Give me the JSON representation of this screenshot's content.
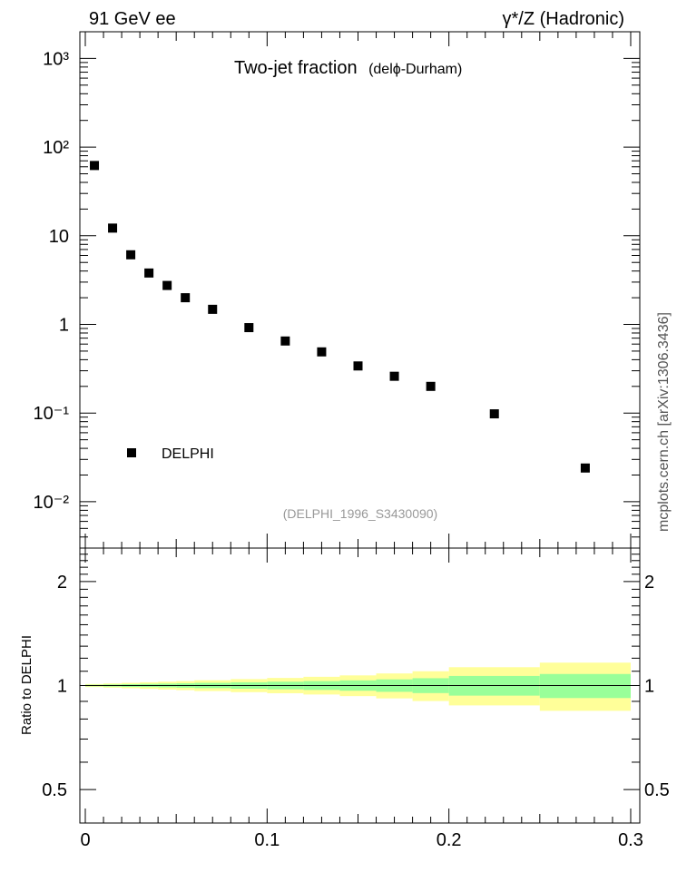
{
  "header": {
    "left": "91 GeV ee",
    "right": "γ*/Z (Hadronic)"
  },
  "main_panel": {
    "title": "Two-jet fraction",
    "title_sub": "(delϕ-Durham)",
    "analysis_id": "(DELPHI_1996_S3430090)",
    "legend_label": "DELPHI",
    "y_ticks": [
      "10³",
      "10²",
      "10",
      "1",
      "10⁻¹",
      "10⁻²"
    ]
  },
  "ratio_panel": {
    "ylabel": "Ratio to DELPHI",
    "y_ticks": [
      "2",
      "1",
      "0.5"
    ],
    "x_ticks": [
      "0",
      "0.1",
      "0.2",
      "0.3"
    ]
  },
  "side_label": "mcplots.cern.ch [arXiv:1306.3436]",
  "colors": {
    "band_inner": "#99ff99",
    "band_outer": "#ffff99",
    "marker": "#000000",
    "analysis_id": "#999999"
  },
  "chart_data": [
    {
      "type": "scatter",
      "title": "Two-jet fraction (delϕ-Durham)",
      "ylog": true,
      "xlim": [
        -0.003,
        0.305
      ],
      "ylim": [
        0.003,
        2000
      ],
      "legend": "left",
      "series": [
        {
          "name": "DELPHI",
          "x": [
            0.005,
            0.015,
            0.025,
            0.035,
            0.045,
            0.055,
            0.07,
            0.09,
            0.11,
            0.13,
            0.15,
            0.17,
            0.19,
            0.225,
            0.275
          ],
          "y": [
            62,
            12.2,
            6.1,
            3.8,
            2.75,
            2.0,
            1.48,
            0.92,
            0.65,
            0.49,
            0.34,
            0.26,
            0.2,
            0.098,
            0.024
          ]
        }
      ]
    },
    {
      "type": "area",
      "ylabel": "Ratio to DELPHI",
      "ylog": true,
      "ylim": [
        0.4,
        2.5
      ],
      "xlim": [
        -0.003,
        0.305
      ],
      "bin_edges": [
        0,
        0.01,
        0.02,
        0.03,
        0.04,
        0.05,
        0.06,
        0.08,
        0.1,
        0.12,
        0.14,
        0.16,
        0.18,
        0.2,
        0.25,
        0.3
      ],
      "inner_band": [
        [
          0.995,
          1.005
        ],
        [
          0.993,
          1.007
        ],
        [
          0.991,
          1.009
        ],
        [
          0.99,
          1.011
        ],
        [
          0.988,
          1.013
        ],
        [
          0.986,
          1.015
        ],
        [
          0.983,
          1.018
        ],
        [
          0.979,
          1.022
        ],
        [
          0.975,
          1.026
        ],
        [
          0.971,
          1.03
        ],
        [
          0.966,
          1.035
        ],
        [
          0.959,
          1.042
        ],
        [
          0.951,
          1.05
        ],
        [
          0.935,
          1.066
        ],
        [
          0.92,
          1.08
        ]
      ],
      "outer_band": [
        [
          0.99,
          1.01
        ],
        [
          0.986,
          1.014
        ],
        [
          0.982,
          1.018
        ],
        [
          0.978,
          1.022
        ],
        [
          0.974,
          1.026
        ],
        [
          0.97,
          1.03
        ],
        [
          0.964,
          1.036
        ],
        [
          0.957,
          1.044
        ],
        [
          0.95,
          1.052
        ],
        [
          0.942,
          1.06
        ],
        [
          0.932,
          1.07
        ],
        [
          0.918,
          1.084
        ],
        [
          0.902,
          1.1
        ],
        [
          0.876,
          1.13
        ],
        [
          0.845,
          1.165
        ]
      ]
    }
  ]
}
